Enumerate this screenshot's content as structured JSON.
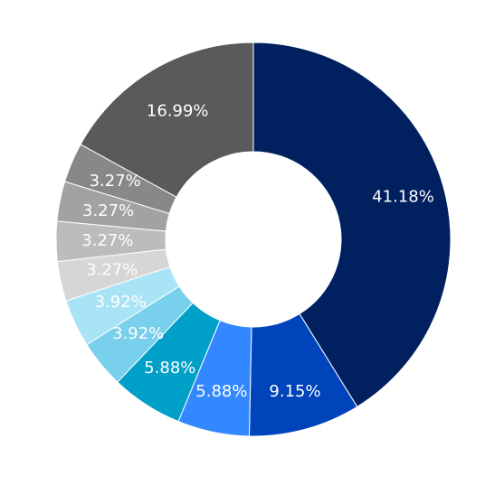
{
  "chart_data": {
    "type": "pie",
    "variant": "donut",
    "title": "",
    "legend": "none",
    "direction": "clockwise-from-top",
    "slices": [
      {
        "label": "41.18%",
        "value": 41.18,
        "color": "#002060"
      },
      {
        "label": "9.15%",
        "value": 9.15,
        "color": "#0044bb"
      },
      {
        "label": "5.88%",
        "value": 5.88,
        "color": "#3388ff"
      },
      {
        "label": "5.88%",
        "value": 5.88,
        "color": "#00a0c8"
      },
      {
        "label": "3.92%",
        "value": 3.92,
        "color": "#78d0ec"
      },
      {
        "label": "3.92%",
        "value": 3.92,
        "color": "#a8e4f6"
      },
      {
        "label": "3.27%",
        "value": 3.27,
        "color": "#d6d6d6"
      },
      {
        "label": "3.27%",
        "value": 3.27,
        "color": "#bcbcbc"
      },
      {
        "label": "3.27%",
        "value": 3.27,
        "color": "#a2a2a2"
      },
      {
        "label": "3.27%",
        "value": 3.27,
        "color": "#888888"
      },
      {
        "label": "16.99%",
        "value": 16.99,
        "color": "#5a5a5a"
      }
    ]
  }
}
